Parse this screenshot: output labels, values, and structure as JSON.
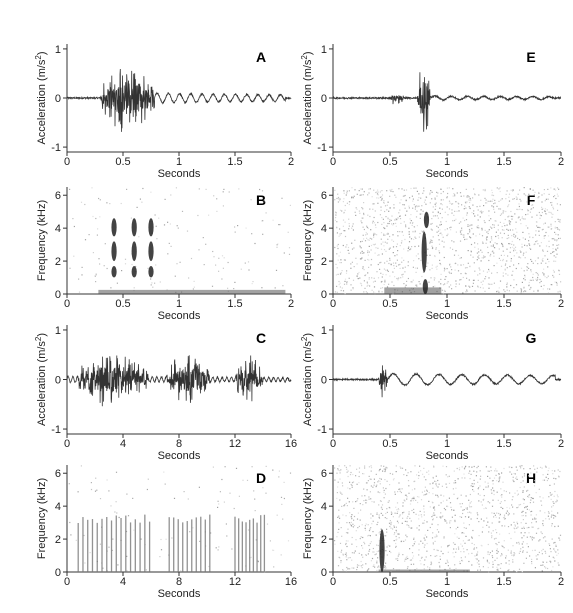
{
  "chart_data": [
    {
      "id": "A",
      "type": "line",
      "label": "A",
      "ylabel_text": "Acceleration (m/s",
      "ylabel_sup": "2",
      "ylabel_close": ")",
      "xlabel": "Seconds",
      "xlim": [
        0,
        2
      ],
      "ylim": [
        -1.1,
        1.1
      ],
      "xticks": [
        0,
        0.5,
        1,
        1.5,
        2
      ],
      "xtick_labels": [
        "0",
        "0.5",
        "1",
        "1.5",
        "2"
      ],
      "yticks": [
        -1,
        0,
        1
      ],
      "ytick_labels": [
        "-1",
        "0",
        "1"
      ],
      "bursts": [
        {
          "start": 0.3,
          "end": 0.78,
          "peak": 0.75
        }
      ],
      "ringing": {
        "start": 0.78,
        "end": 1.95,
        "amplitude": 0.1,
        "frequency_hz": 10
      }
    },
    {
      "id": "B",
      "type": "heatmap",
      "label": "B",
      "ylabel": "Frequency (kHz)",
      "xlabel": "Seconds",
      "xlim": [
        0,
        2
      ],
      "ylim": [
        0,
        6.5
      ],
      "xticks": [
        0,
        0.5,
        1,
        1.5,
        2
      ],
      "xtick_labels": [
        "0",
        "0.5",
        "1",
        "1.5",
        "2"
      ],
      "yticks": [
        0,
        2,
        4,
        6
      ],
      "ytick_labels": [
        "0",
        "2",
        "4",
        "6"
      ],
      "blobs": [
        {
          "t": 0.42,
          "f_low": 1.0,
          "f_high": 1.7
        },
        {
          "t": 0.42,
          "f_low": 2.0,
          "f_high": 3.2
        },
        {
          "t": 0.42,
          "f_low": 3.5,
          "f_high": 4.6
        },
        {
          "t": 0.6,
          "f_low": 1.0,
          "f_high": 1.7
        },
        {
          "t": 0.6,
          "f_low": 2.0,
          "f_high": 3.2
        },
        {
          "t": 0.6,
          "f_low": 3.5,
          "f_high": 4.6
        },
        {
          "t": 0.75,
          "f_low": 1.0,
          "f_high": 1.7
        },
        {
          "t": 0.75,
          "f_low": 2.0,
          "f_high": 3.2
        },
        {
          "t": 0.75,
          "f_low": 3.5,
          "f_high": 4.6
        }
      ],
      "baseline": {
        "start": 0.28,
        "end": 1.95,
        "f_max": 0.25
      },
      "noise_density": 0.02
    },
    {
      "id": "C",
      "type": "line",
      "label": "C",
      "ylabel_text": "Acceleration (m/s",
      "ylabel_sup": "2",
      "ylabel_close": ")",
      "xlabel": "Seconds",
      "xlim": [
        0,
        16
      ],
      "ylim": [
        -1.1,
        1.1
      ],
      "xticks": [
        0,
        4,
        8,
        12,
        16
      ],
      "xtick_labels": [
        "0",
        "4",
        "8",
        "12",
        "16"
      ],
      "yticks": [
        -1,
        0,
        1
      ],
      "ytick_labels": [
        "-1",
        "0",
        "1"
      ],
      "bursts": [
        {
          "start": 0.8,
          "end": 5.8,
          "peak": 0.55
        },
        {
          "start": 7.1,
          "end": 10.2,
          "peak": 0.55
        },
        {
          "start": 12.0,
          "end": 14.0,
          "peak": 0.45
        }
      ],
      "ringing": {
        "start": 0,
        "end": 16,
        "amplitude": 0.06,
        "frequency_hz": 3
      }
    },
    {
      "id": "D",
      "type": "heatmap",
      "label": "D",
      "ylabel": "Frequency (kHz)",
      "xlabel": "Seconds",
      "xlim": [
        0,
        16
      ],
      "ylim": [
        0,
        6.5
      ],
      "xticks": [
        0,
        4,
        8,
        12,
        16
      ],
      "xtick_labels": [
        "0",
        "4",
        "8",
        "12",
        "16"
      ],
      "yticks": [
        0,
        2,
        4,
        6
      ],
      "ytick_labels": [
        "0",
        "2",
        "4",
        "6"
      ],
      "pulse_groups": [
        {
          "start": 0.8,
          "end": 5.9,
          "count": 16,
          "f_max": 3.5
        },
        {
          "start": 7.3,
          "end": 10.2,
          "count": 10,
          "f_max": 3.5
        },
        {
          "start": 12.0,
          "end": 14.1,
          "count": 9,
          "f_max": 3.5
        }
      ],
      "noise_density": 0.015
    },
    {
      "id": "E",
      "type": "line",
      "label": "E",
      "ylabel_text": "Acceleration (m/s",
      "ylabel_sup": "2",
      "ylabel_close": ")",
      "xlabel": "Seconds",
      "xlim": [
        0,
        2
      ],
      "ylim": [
        -1.1,
        1.1
      ],
      "xticks": [
        0,
        0.5,
        1,
        1.5,
        2
      ],
      "xtick_labels": [
        "0",
        "0.5",
        "1",
        "1.5",
        "2"
      ],
      "yticks": [
        -1,
        0,
        1
      ],
      "ytick_labels": [
        "-1",
        "0",
        "1"
      ],
      "bursts": [
        {
          "start": 0.49,
          "end": 0.62,
          "peak": 0.15
        },
        {
          "start": 0.74,
          "end": 0.86,
          "peak": 0.75
        }
      ],
      "ringing": {
        "start": 0.86,
        "end": 1.95,
        "amplitude": 0.04,
        "frequency_hz": 7
      }
    },
    {
      "id": "F",
      "type": "heatmap",
      "label": "F",
      "ylabel": "Frequency (kHz)",
      "xlabel": "Seconds",
      "xlim": [
        0,
        2
      ],
      "ylim": [
        0,
        6.5
      ],
      "xticks": [
        0,
        0.5,
        1,
        1.5,
        2
      ],
      "xtick_labels": [
        "0",
        "0.5",
        "1",
        "1.5",
        "2"
      ],
      "yticks": [
        0,
        2,
        4,
        6
      ],
      "ytick_labels": [
        "0",
        "2",
        "4",
        "6"
      ],
      "blobs": [
        {
          "t": 0.8,
          "f_low": 1.3,
          "f_high": 3.8
        },
        {
          "t": 0.81,
          "f_low": 0.0,
          "f_high": 0.9
        },
        {
          "t": 0.82,
          "f_low": 4.0,
          "f_high": 5.0
        }
      ],
      "baseline": {
        "start": 0.45,
        "end": 0.95,
        "f_max": 0.4
      },
      "noise_density": 0.18
    },
    {
      "id": "G",
      "type": "line",
      "label": "G",
      "ylabel_text": "Acceleration (m/s",
      "ylabel_sup": "2",
      "ylabel_close": ")",
      "xlabel": "Seconds",
      "xlim": [
        0,
        2
      ],
      "ylim": [
        -1.1,
        1.1
      ],
      "xticks": [
        0,
        0.5,
        1,
        1.5,
        2
      ],
      "xtick_labels": [
        "0",
        "0.5",
        "1",
        "1.5",
        "2"
      ],
      "yticks": [
        -1,
        0,
        1
      ],
      "ytick_labels": [
        "-1",
        "0",
        "1"
      ],
      "bursts": [
        {
          "start": 0.4,
          "end": 0.48,
          "peak": 0.38
        }
      ],
      "ringing": {
        "start": 0.48,
        "end": 1.95,
        "amplitude": 0.12,
        "frequency_hz": 5
      }
    },
    {
      "id": "H",
      "type": "heatmap",
      "label": "H",
      "ylabel": "Frequency (kHz)",
      "xlabel": "Seconds",
      "xlim": [
        0,
        2
      ],
      "ylim": [
        0,
        6.5
      ],
      "xticks": [
        0,
        0.5,
        1,
        1.5,
        2
      ],
      "xtick_labels": [
        "0",
        "0.5",
        "1",
        "1.5",
        "2"
      ],
      "yticks": [
        0,
        2,
        4,
        6
      ],
      "ytick_labels": [
        "0",
        "2",
        "4",
        "6"
      ],
      "blobs": [
        {
          "t": 0.43,
          "f_low": 0.0,
          "f_high": 2.6
        }
      ],
      "baseline": {
        "start": 0.4,
        "end": 1.2,
        "f_max": 0.15
      },
      "noise_density": 0.16
    }
  ]
}
